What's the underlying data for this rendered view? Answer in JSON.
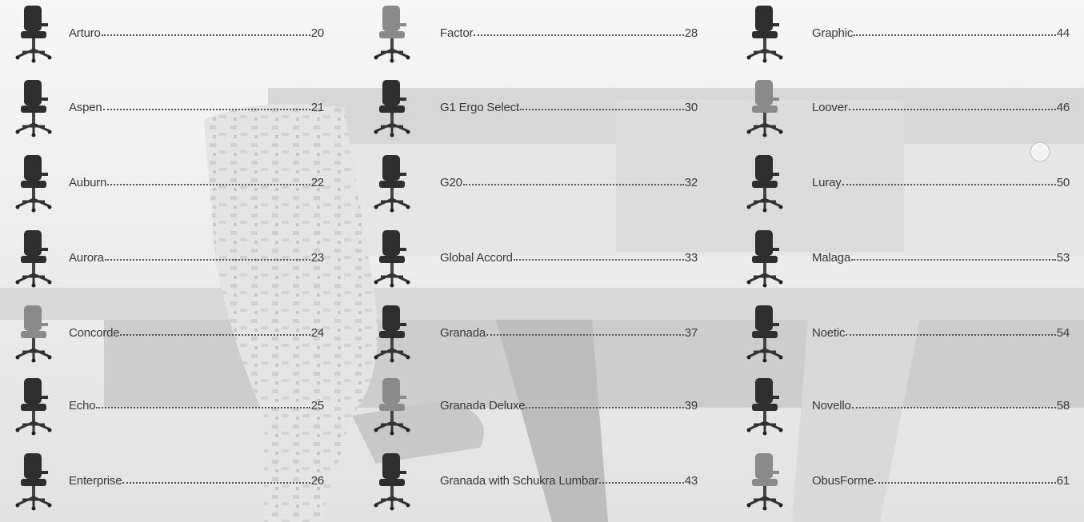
{
  "columns": [
    {
      "entries": [
        {
          "name": "Arturo",
          "page": 20
        },
        {
          "name": "Aspen",
          "page": 21
        },
        {
          "name": "Auburn",
          "page": 22
        },
        {
          "name": "Aurora",
          "page": 23
        },
        {
          "name": "Concorde",
          "page": 24
        },
        {
          "name": "Echo",
          "page": 25
        },
        {
          "name": "Enterprise",
          "page": 26
        }
      ]
    },
    {
      "entries": [
        {
          "name": "Factor",
          "page": 28
        },
        {
          "name": "G1 Ergo Select",
          "page": 30
        },
        {
          "name": "G20",
          "page": 32
        },
        {
          "name": "Global Accord",
          "page": 33
        },
        {
          "name": "Granada",
          "page": 37
        },
        {
          "name": "Granada Deluxe",
          "page": 39
        },
        {
          "name": "Granada with Schukra Lumbar",
          "page": 43
        }
      ]
    },
    {
      "entries": [
        {
          "name": "Graphic",
          "page": 44
        },
        {
          "name": "Loover",
          "page": 46
        },
        {
          "name": "Luray",
          "page": 50
        },
        {
          "name": "Malaga",
          "page": 53
        },
        {
          "name": "Noetic",
          "page": 54
        },
        {
          "name": "Novello",
          "page": 58
        },
        {
          "name": "ObusForme",
          "page": 61
        }
      ]
    }
  ]
}
